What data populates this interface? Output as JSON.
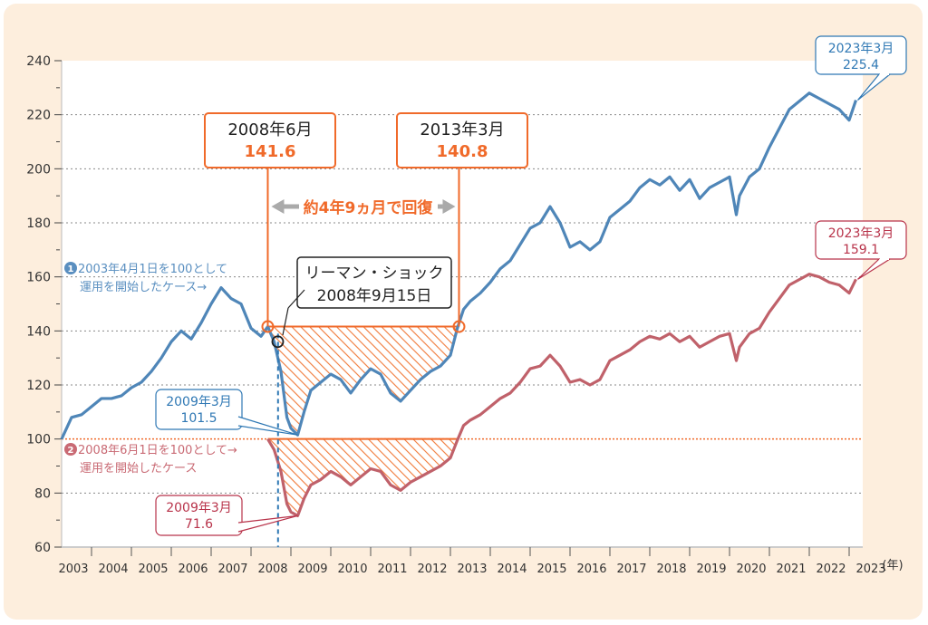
{
  "chart_data": {
    "type": "line",
    "title": "",
    "xlabel": "(年)",
    "ylabel": "",
    "ylim": [
      60,
      240
    ],
    "yticks": [
      60,
      80,
      100,
      120,
      140,
      160,
      180,
      200,
      220,
      240
    ],
    "xticks": [
      "2003",
      "2004",
      "2005",
      "2006",
      "2007",
      "2008",
      "2009",
      "2010",
      "2011",
      "2012",
      "2013",
      "2014",
      "2015",
      "2016",
      "2017",
      "2018",
      "2019",
      "2020",
      "2021",
      "2022",
      "2023"
    ],
    "x_unit_label": "(年)",
    "grid": "horizontal dotted",
    "series": [
      {
        "name": "2003年4月1日を100として運用を開始したケース",
        "color": "#4f86b8",
        "x": [
          2003.25,
          2003.5,
          2003.75,
          2004.0,
          2004.25,
          2004.5,
          2004.75,
          2005.0,
          2005.25,
          2005.5,
          2005.75,
          2006.0,
          2006.25,
          2006.5,
          2006.75,
          2007.0,
          2007.25,
          2007.5,
          2007.75,
          2008.0,
          2008.25,
          2008.42,
          2008.58,
          2008.75,
          2008.9,
          2009.0,
          2009.17,
          2009.33,
          2009.5,
          2009.75,
          2010.0,
          2010.25,
          2010.5,
          2010.75,
          2011.0,
          2011.25,
          2011.5,
          2011.75,
          2012.0,
          2012.25,
          2012.5,
          2012.75,
          2013.0,
          2013.17,
          2013.33,
          2013.5,
          2013.75,
          2014.0,
          2014.25,
          2014.5,
          2014.75,
          2015.0,
          2015.25,
          2015.5,
          2015.75,
          2016.0,
          2016.25,
          2016.5,
          2016.75,
          2017.0,
          2017.25,
          2017.5,
          2017.75,
          2018.0,
          2018.25,
          2018.5,
          2018.75,
          2019.0,
          2019.25,
          2019.5,
          2019.75,
          2020.0,
          2020.17,
          2020.25,
          2020.5,
          2020.75,
          2021.0,
          2021.25,
          2021.5,
          2021.75,
          2022.0,
          2022.25,
          2022.5,
          2022.75,
          2023.0,
          2023.17
        ],
        "values": [
          100,
          108,
          109,
          112,
          115,
          115,
          116,
          119,
          121,
          125,
          130,
          136,
          140,
          137,
          143,
          150,
          156,
          152,
          150,
          141,
          138,
          141.6,
          136,
          125,
          108,
          104,
          101.5,
          110,
          118,
          121,
          124,
          122,
          117,
          122,
          126,
          124,
          117,
          114,
          118,
          122,
          125,
          127,
          131,
          140.8,
          148,
          151,
          154,
          158,
          163,
          166,
          172,
          178,
          180,
          186,
          180,
          171,
          173,
          170,
          173,
          182,
          185,
          188,
          193,
          196,
          194,
          197,
          192,
          196,
          189,
          193,
          195,
          197,
          183,
          190,
          197,
          200,
          208,
          215,
          222,
          225,
          228,
          226,
          224,
          222,
          218,
          225.4
        ]
      },
      {
        "name": "2008年6月1日を100として運用を開始したケース",
        "color": "#c0616a",
        "x": [
          2008.42,
          2008.58,
          2008.75,
          2008.9,
          2009.0,
          2009.17,
          2009.33,
          2009.5,
          2009.75,
          2010.0,
          2010.25,
          2010.5,
          2010.75,
          2011.0,
          2011.25,
          2011.5,
          2011.75,
          2012.0,
          2012.25,
          2012.5,
          2012.75,
          2013.0,
          2013.17,
          2013.33,
          2013.5,
          2013.75,
          2014.0,
          2014.25,
          2014.5,
          2014.75,
          2015.0,
          2015.25,
          2015.5,
          2015.75,
          2016.0,
          2016.25,
          2016.5,
          2016.75,
          2017.0,
          2017.25,
          2017.5,
          2017.75,
          2018.0,
          2018.25,
          2018.5,
          2018.75,
          2019.0,
          2019.25,
          2019.5,
          2019.75,
          2020.0,
          2020.17,
          2020.25,
          2020.5,
          2020.75,
          2021.0,
          2021.25,
          2021.5,
          2021.75,
          2022.0,
          2022.25,
          2022.5,
          2022.75,
          2023.0,
          2023.17
        ],
        "values": [
          100,
          96,
          88,
          76,
          73,
          71.6,
          78,
          83,
          85,
          88,
          86,
          83,
          86,
          89,
          88,
          83,
          81,
          84,
          86,
          88,
          90,
          93,
          99.4,
          105,
          107,
          109,
          112,
          115,
          117,
          121,
          126,
          127,
          131,
          127,
          121,
          122,
          120,
          122,
          129,
          131,
          133,
          136,
          138,
          137,
          139,
          136,
          138,
          134,
          136,
          138,
          139,
          129,
          134,
          139,
          141,
          147,
          152,
          157,
          159,
          161,
          160,
          158,
          157,
          154,
          159.1
        ]
      }
    ],
    "reference_lines": [
      {
        "value": 100,
        "style": "dotted",
        "color": "#f06a2a"
      }
    ],
    "annotations": {
      "start_point": {
        "label_date": "2008年6月",
        "label_value": "141.6"
      },
      "recovery_point": {
        "label_date": "2013年3月",
        "label_value": "140.8"
      },
      "recovery_span": "約4年9ヵ月で回復",
      "lehman": {
        "line1": "リーマン・ショック",
        "line2": "2008年9月15日"
      },
      "blue_trough": {
        "date": "2009年3月",
        "value": "101.5"
      },
      "red_trough": {
        "date": "2009年3月",
        "value": "71.6"
      },
      "blue_end": {
        "date": "2023年3月",
        "value": "225.4"
      },
      "red_end": {
        "date": "2023年3月",
        "value": "159.1"
      },
      "series1_label": {
        "badge": "1",
        "line1": "2003年4月1日を100として",
        "line2": "運用を開始したケース→"
      },
      "series2_label": {
        "badge": "2",
        "line1": "2008年6月1日を100として→",
        "line2": "運用を開始したケース"
      }
    },
    "colors": {
      "blue": "#4f86b8",
      "red": "#c0616a",
      "orange": "#f06a2a",
      "blue_text": "#2f78b4",
      "red_text": "#b8334a",
      "frame_bg": "#fdeedd",
      "arrow_gray": "#aaaaaa"
    }
  }
}
